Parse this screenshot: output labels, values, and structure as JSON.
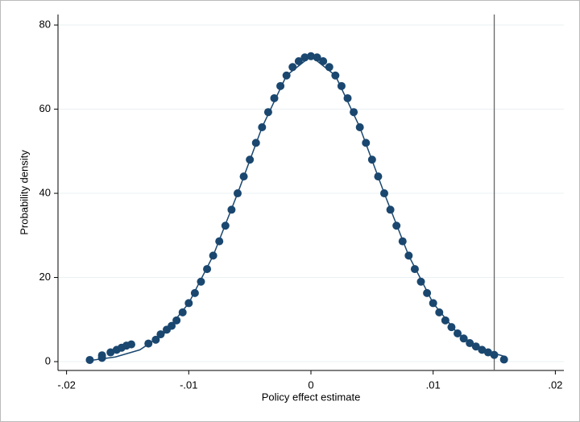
{
  "chart_data": {
    "type": "scatter",
    "x_label": "Policy effect estimate",
    "y_label": "Probability density",
    "xlim": [
      -0.0207,
      0.0207
    ],
    "ylim": [
      -2.1,
      82.5
    ],
    "xticks": [
      {
        "value": -0.02,
        "label": "-.02"
      },
      {
        "value": -0.01,
        "label": "-.01"
      },
      {
        "value": 0,
        "label": "0"
      },
      {
        "value": 0.01,
        "label": ".01"
      },
      {
        "value": 0.02,
        "label": ".02"
      }
    ],
    "yticks": [
      0,
      20,
      40,
      60,
      80
    ],
    "grid": true,
    "xline": 0.015,
    "xline_color": "#666666",
    "series": [
      {
        "type": "scatter",
        "color": "#1a476f",
        "x": [
          -0.0181,
          -0.0171,
          -0.0171,
          -0.0164,
          -0.0159,
          -0.0155,
          -0.0151,
          -0.0147,
          -0.0133,
          -0.0127,
          -0.0123,
          -0.0118,
          -0.0114,
          -0.011,
          -0.0105,
          -0.01,
          -0.0095,
          -0.009,
          -0.0085,
          -0.008,
          -0.0075,
          -0.007,
          -0.0065,
          -0.006,
          -0.0055,
          -0.005,
          -0.0045,
          -0.004,
          -0.0035,
          -0.003,
          -0.0025,
          -0.002,
          -0.0015,
          -0.001,
          -0.0005,
          0,
          0.0005,
          0.001,
          0.0015,
          0.002,
          0.0025,
          0.003,
          0.0035,
          0.004,
          0.0045,
          0.005,
          0.0055,
          0.006,
          0.0065,
          0.007,
          0.0075,
          0.008,
          0.0085,
          0.009,
          0.0095,
          0.01,
          0.0105,
          0.011,
          0.0115,
          0.012,
          0.0125,
          0.013,
          0.0135,
          0.014,
          0.0145,
          0.015,
          0.0158
        ],
        "values": [
          0.4,
          0.9,
          1.5,
          2.2,
          2.8,
          3.3,
          3.8,
          4.1,
          4.3,
          5.2,
          6.5,
          7.6,
          8.5,
          9.8,
          11.7,
          13.9,
          16.3,
          19.0,
          22.0,
          25.2,
          28.6,
          32.3,
          36.1,
          40.0,
          44.0,
          48.0,
          52.0,
          55.7,
          59.3,
          62.6,
          65.5,
          68.0,
          70.0,
          71.4,
          72.3,
          72.6,
          72.3,
          71.4,
          70.0,
          68.0,
          65.5,
          62.6,
          59.3,
          55.7,
          52.0,
          48.0,
          44.0,
          40.0,
          36.1,
          32.3,
          28.6,
          25.2,
          22.0,
          19.0,
          16.3,
          13.9,
          11.7,
          9.8,
          8.2,
          6.7,
          5.5,
          4.4,
          3.6,
          2.8,
          2.2,
          1.6,
          0.5
        ]
      },
      {
        "type": "line",
        "color": "#1a476f",
        "x": [
          -0.018,
          -0.016,
          -0.014,
          -0.012,
          -0.01,
          -0.008,
          -0.006,
          -0.004,
          -0.002,
          0,
          0.002,
          0.004,
          0.006,
          0.008,
          0.01,
          0.012,
          0.014,
          0.016
        ],
        "values": [
          0.3,
          1.1,
          2.8,
          6.7,
          13.9,
          25.2,
          40.0,
          55.7,
          68.0,
          72.6,
          68.0,
          55.7,
          40.0,
          25.2,
          13.9,
          6.7,
          2.8,
          1.1
        ]
      }
    ]
  }
}
